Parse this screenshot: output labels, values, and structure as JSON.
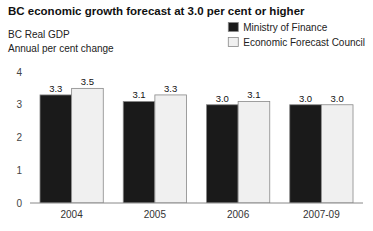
{
  "chart_data": {
    "type": "bar",
    "title": "BC economic growth forecast at 3.0 per cent or higher",
    "subtitle": "BC Real GDP",
    "ylabel": "Annual per cent change",
    "categories": [
      "2004",
      "2005",
      "2006",
      "2007-09"
    ],
    "series": [
      {
        "name": "Ministry of Finance",
        "color": "#1a1a1a",
        "values": [
          3.3,
          3.1,
          3.0,
          3.0
        ],
        "value_labels": [
          "3.3",
          "3.1",
          "3.0",
          "3.0"
        ]
      },
      {
        "name": "Economic Forecast Council",
        "color": "#f0f0f0",
        "values": [
          3.5,
          3.3,
          3.1,
          3.0
        ],
        "value_labels": [
          "3.5",
          "3.3",
          "3.1",
          "3.0"
        ]
      }
    ],
    "ylim": [
      0,
      4
    ],
    "yticks": [
      0,
      1,
      2,
      3,
      4
    ],
    "grid": false,
    "legend": "upper right",
    "data_labels": true
  }
}
